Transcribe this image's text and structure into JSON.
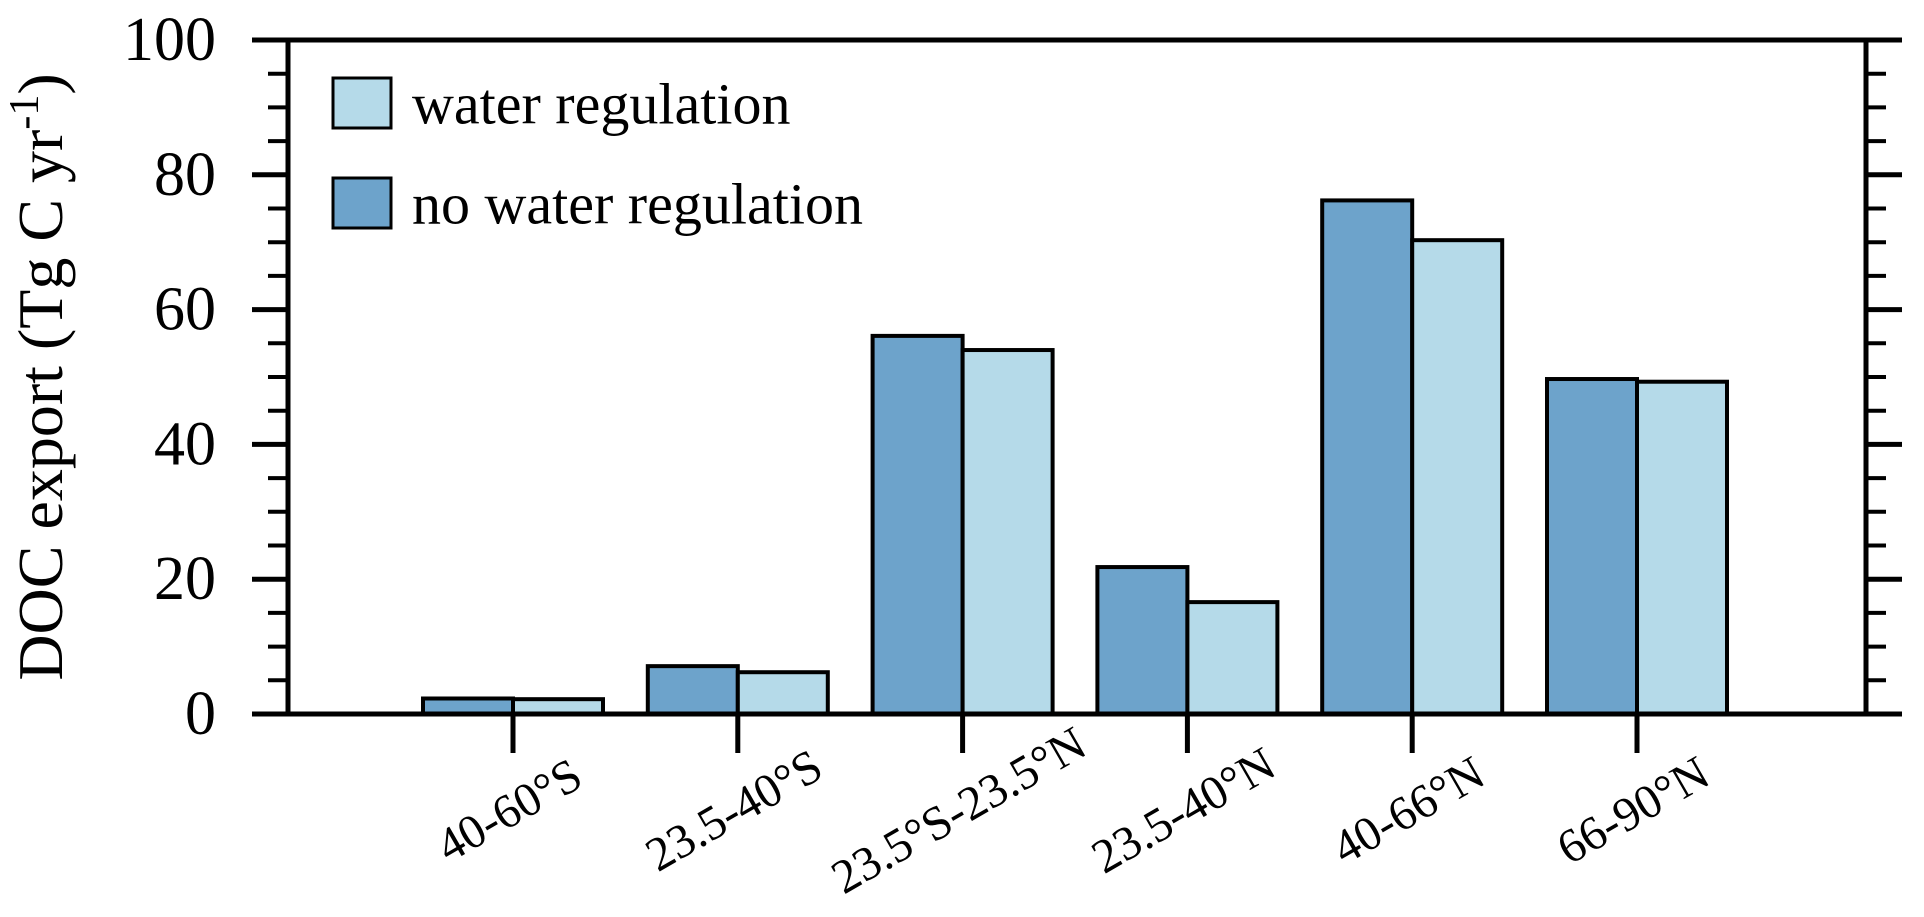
{
  "figure": {
    "background": "#ffffff",
    "frame_color": "#000000"
  },
  "legend": {
    "items": [
      {
        "label": "water regulation",
        "color": "#b5dae9",
        "series": "water regulation"
      },
      {
        "label": "no water regulation",
        "color": "#6da3cb",
        "series": "no water regulation"
      }
    ]
  },
  "chart_data": {
    "type": "bar",
    "title": "",
    "xlabel": "",
    "ylabel": "DOC export (Tg C yr-1)",
    "ylabel_parts": {
      "prefix": "DOC export (Tg C yr",
      "superscript": "-1",
      "suffix": ")"
    },
    "categories": [
      "40-60°S",
      "23.5-40°S",
      "23.5°S-23.5°N",
      "23.5-40°N",
      "40-66°N",
      "66-90°N"
    ],
    "series": [
      {
        "name": "no water regulation",
        "color": "#6da3cb",
        "values": [
          2.3,
          7.1,
          56.1,
          21.8,
          76.2,
          49.7
        ]
      },
      {
        "name": "water regulation",
        "color": "#b5dae9",
        "values": [
          2.2,
          6.2,
          54.0,
          16.6,
          70.3,
          49.3
        ]
      }
    ],
    "ylim": [
      0,
      100
    ],
    "yticks_major": [
      0,
      20,
      40,
      60,
      80,
      100
    ],
    "ytick_labels": [
      "0",
      "20",
      "40",
      "60",
      "80",
      "100"
    ],
    "minor_tick_step": 5,
    "grid": "off",
    "legend_position": "upper-left-inside",
    "bar_outline_color": "#000000",
    "layout_notes": "paired bars per category: 'no water regulation' (dark) left of tick, 'water regulation' (light) right of tick; x tick labels rotated 30 degrees"
  }
}
